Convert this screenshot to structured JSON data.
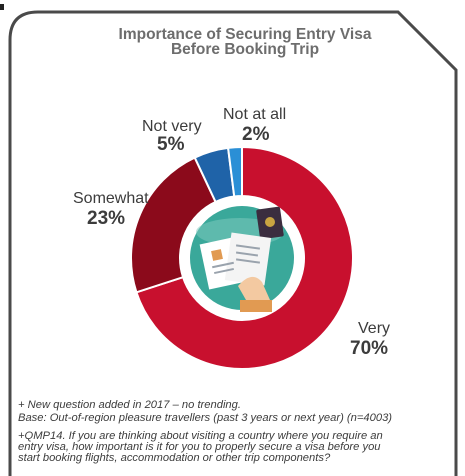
{
  "chart_data": {
    "type": "pie",
    "title_line1": "Importance of Securing Entry Visa",
    "title_line2": "Before Booking Trip",
    "slices": [
      {
        "label": "Very",
        "value": 70,
        "value_label": "70%",
        "color": "#c8102e"
      },
      {
        "label": "Somewhat",
        "value": 23,
        "value_label": "23%",
        "color": "#8b0a1b"
      },
      {
        "label": "Not very",
        "value": 5,
        "value_label": "5%",
        "color": "#1f63a8"
      },
      {
        "label": "Not at all",
        "value": 2,
        "value_label": "2%",
        "color": "#2a8fd6"
      }
    ]
  },
  "colors": {
    "frame_stroke": "#4a4a4a",
    "center_disc": "#3aa89a",
    "center_ring": "#ffffff"
  },
  "notes": {
    "line1": "+ New question added in 2017 – no trending.",
    "line2": "Base: Out-of-region pleasure travellers (past 3 years or next year) (n=4003)",
    "line3a": "+QMP14. If you are thinking about visiting a country where you require an",
    "line3b": "entry visa, how important is it for you to properly secure a visa before you",
    "line3c": "start booking flights, accommodation or other trip components?"
  }
}
